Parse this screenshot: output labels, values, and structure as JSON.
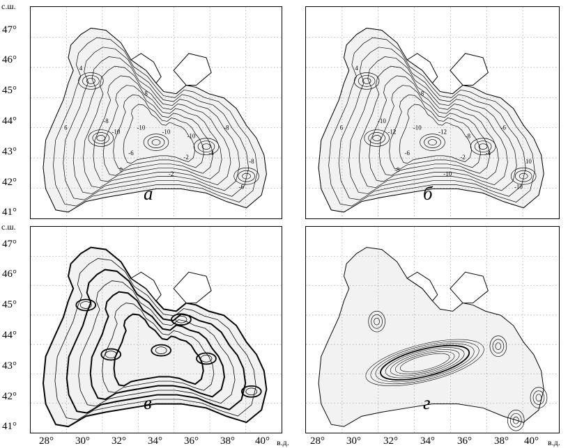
{
  "map": {
    "north_unit": "с.ш.",
    "east_unit": "в.д.",
    "latitudes": [
      "47°",
      "46°",
      "45°",
      "44°",
      "43°",
      "42°",
      "41°"
    ],
    "longitudes": [
      "28°",
      "30°",
      "32°",
      "34°",
      "36°",
      "38°",
      "40°"
    ],
    "panels": [
      {
        "letter": "а",
        "contour_labels": [
          "-8",
          "-10",
          "-10",
          "-10",
          "-10",
          "-8",
          "-4",
          "-2",
          "-6",
          "0",
          "-2",
          "4",
          "6",
          "8",
          "-8",
          "-6"
        ]
      },
      {
        "letter": "б",
        "contour_labels": [
          "-10",
          "-12",
          "-10",
          "-12",
          "-8",
          "-6",
          "-4",
          "-2",
          "-6",
          "-8",
          "-10",
          "4",
          "6",
          "8",
          "10",
          "-10"
        ]
      },
      {
        "letter": "в",
        "contour_labels": []
      },
      {
        "letter": "г",
        "contour_labels": []
      }
    ]
  },
  "colors": {
    "land": "#ffffff",
    "sea": "#f2f2f2",
    "contour": "#000000",
    "grid": "#9a9a9a"
  }
}
